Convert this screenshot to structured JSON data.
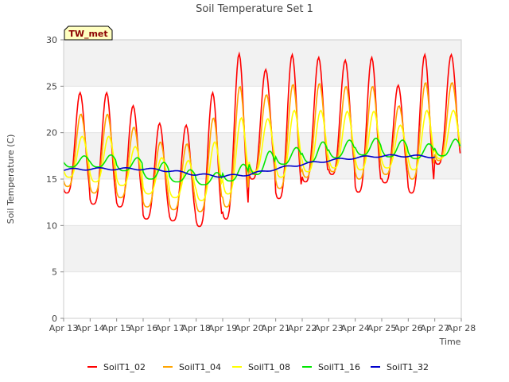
{
  "chart_data": {
    "type": "line",
    "title": "Soil Temperature Set 1",
    "xlabel": "Time",
    "ylabel": "Soil Temperature (C)",
    "station_label": "TW_met",
    "xlim": [
      "Apr 13",
      "Apr 28"
    ],
    "ylim": [
      0,
      30
    ],
    "x_ticks": [
      "Apr 13",
      "Apr 14",
      "Apr 15",
      "Apr 16",
      "Apr 17",
      "Apr 18",
      "Apr 19",
      "Apr 20",
      "Apr 21",
      "Apr 22",
      "Apr 23",
      "Apr 24",
      "Apr 25",
      "Apr 26",
      "Apr 27",
      "Apr 28"
    ],
    "y_ticks": [
      0,
      5,
      10,
      15,
      20,
      25,
      30
    ],
    "grid": "horizontal bands",
    "legend_position": "bottom",
    "series": [
      {
        "name": "SoilT1_02",
        "color": "#ff0000",
        "x": [
          "Apr 13",
          "Apr 14",
          "Apr 15",
          "Apr 16",
          "Apr 17",
          "Apr 18",
          "Apr 19",
          "Apr 20",
          "Apr 21",
          "Apr 22",
          "Apr 23",
          "Apr 24",
          "Apr 25",
          "Apr 26",
          "Apr 27"
        ],
        "min": [
          13.5,
          12.3,
          12.0,
          10.7,
          10.5,
          9.9,
          10.7,
          15.0,
          12.9,
          14.7,
          15.5,
          13.6,
          14.6,
          13.5,
          16.6
        ],
        "max": [
          24.3,
          24.3,
          22.9,
          21.0,
          20.8,
          24.3,
          28.5,
          26.8,
          28.4,
          28.1,
          27.8,
          28.1,
          25.1,
          28.4,
          28.4
        ]
      },
      {
        "name": "SoilT1_04",
        "color": "#ffa500",
        "x": [
          "Apr 13",
          "Apr 14",
          "Apr 15",
          "Apr 16",
          "Apr 17",
          "Apr 18",
          "Apr 19",
          "Apr 20",
          "Apr 21",
          "Apr 22",
          "Apr 23",
          "Apr 24",
          "Apr 25",
          "Apr 26",
          "Apr 27"
        ],
        "min": [
          14.2,
          13.5,
          13.0,
          12.0,
          11.7,
          11.5,
          12.0,
          15.5,
          14.0,
          15.2,
          15.8,
          15.0,
          15.5,
          15.0,
          17.0
        ],
        "max": [
          22.0,
          22.0,
          20.6,
          19.0,
          18.8,
          21.6,
          25.0,
          24.1,
          25.2,
          25.3,
          25.0,
          25.0,
          22.9,
          25.4,
          25.4
        ]
      },
      {
        "name": "SoilT1_08",
        "color": "#ffff00",
        "x": [
          "Apr 13",
          "Apr 14",
          "Apr 15",
          "Apr 16",
          "Apr 17",
          "Apr 18",
          "Apr 19",
          "Apr 20",
          "Apr 21",
          "Apr 22",
          "Apr 23",
          "Apr 24",
          "Apr 25",
          "Apr 26",
          "Apr 27"
        ],
        "min": [
          15.2,
          14.7,
          14.3,
          13.4,
          13.0,
          12.7,
          13.4,
          15.8,
          15.2,
          15.8,
          16.2,
          16.0,
          16.2,
          16.0,
          17.2
        ],
        "max": [
          19.6,
          19.6,
          18.5,
          17.3,
          17.0,
          19.0,
          21.6,
          21.5,
          22.4,
          22.4,
          22.3,
          22.3,
          20.8,
          22.4,
          22.4
        ]
      },
      {
        "name": "SoilT1_16",
        "color": "#00e600",
        "x": [
          "Apr 13",
          "Apr 14",
          "Apr 15",
          "Apr 16",
          "Apr 17",
          "Apr 18",
          "Apr 19",
          "Apr 20",
          "Apr 21",
          "Apr 22",
          "Apr 23",
          "Apr 24",
          "Apr 25",
          "Apr 26",
          "Apr 27"
        ],
        "min": [
          16.3,
          16.3,
          15.9,
          15.0,
          14.7,
          14.4,
          14.8,
          15.5,
          16.6,
          16.8,
          17.3,
          17.6,
          17.4,
          17.2,
          17.5
        ],
        "max": [
          17.5,
          17.6,
          17.3,
          16.8,
          16.0,
          15.7,
          16.6,
          18.0,
          18.4,
          19.0,
          19.2,
          19.4,
          19.2,
          18.8,
          19.3
        ]
      },
      {
        "name": "SoilT1_32",
        "color": "#0000cc",
        "x": [
          "Apr 13",
          "Apr 14",
          "Apr 15",
          "Apr 16",
          "Apr 17",
          "Apr 18",
          "Apr 19",
          "Apr 20",
          "Apr 21",
          "Apr 22",
          "Apr 23",
          "Apr 24",
          "Apr 25",
          "Apr 26",
          "Apr 27"
        ],
        "values": [
          16.0,
          16.1,
          16.1,
          16.1,
          15.9,
          15.5,
          15.3,
          15.5,
          16.1,
          16.6,
          17.0,
          17.3,
          17.5,
          17.5,
          17.4
        ]
      }
    ]
  }
}
